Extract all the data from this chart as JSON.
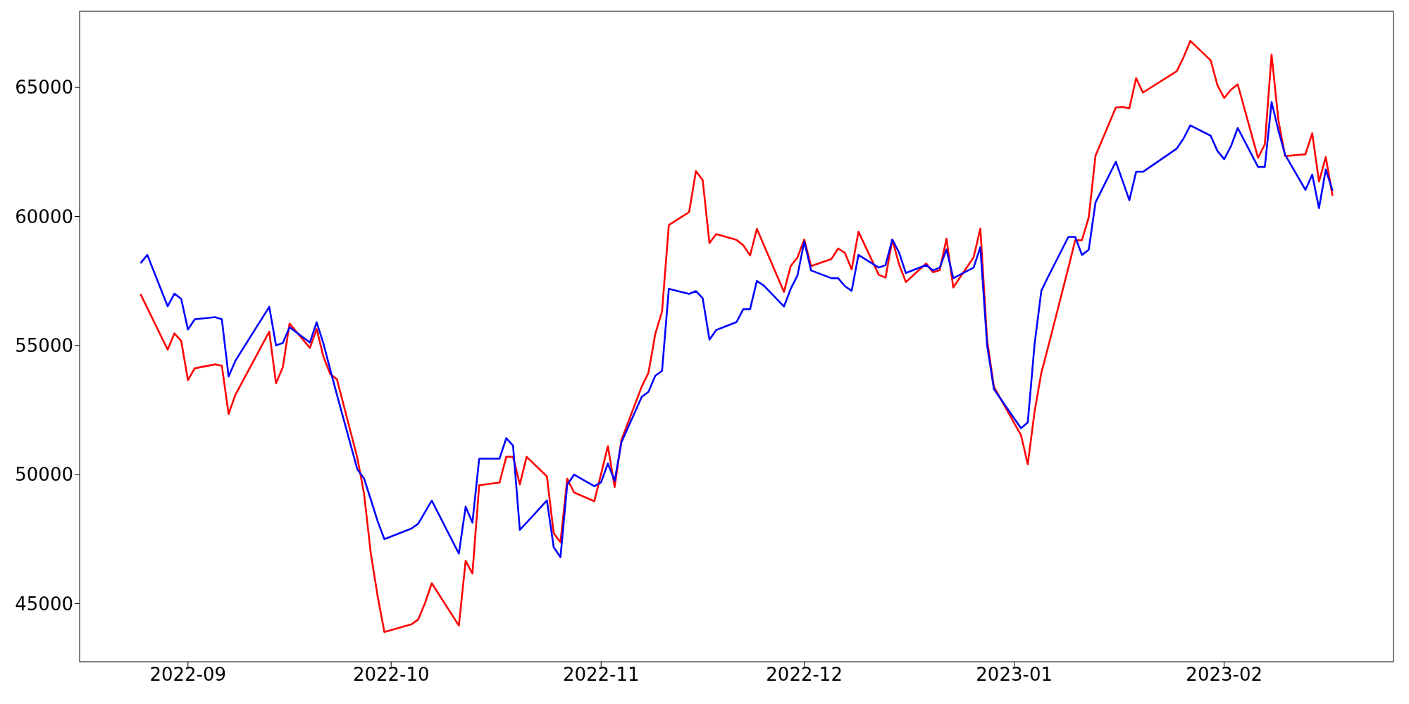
{
  "chart_data": {
    "type": "line",
    "x": [
      "2022-08-25",
      "2022-08-26",
      "2022-08-29",
      "2022-08-30",
      "2022-08-31",
      "2022-09-01",
      "2022-09-02",
      "2022-09-05",
      "2022-09-06",
      "2022-09-07",
      "2022-09-08",
      "2022-09-13",
      "2022-09-14",
      "2022-09-15",
      "2022-09-16",
      "2022-09-19",
      "2022-09-20",
      "2022-09-21",
      "2022-09-22",
      "2022-09-23",
      "2022-09-26",
      "2022-09-27",
      "2022-09-28",
      "2022-09-29",
      "2022-09-30",
      "2022-10-04",
      "2022-10-05",
      "2022-10-06",
      "2022-10-07",
      "2022-10-11",
      "2022-10-12",
      "2022-10-13",
      "2022-10-14",
      "2022-10-17",
      "2022-10-18",
      "2022-10-19",
      "2022-10-20",
      "2022-10-21",
      "2022-10-24",
      "2022-10-25",
      "2022-10-26",
      "2022-10-27",
      "2022-10-28",
      "2022-10-31",
      "2022-11-01",
      "2022-11-02",
      "2022-11-03",
      "2022-11-04",
      "2022-11-07",
      "2022-11-08",
      "2022-11-09",
      "2022-11-10",
      "2022-11-11",
      "2022-11-14",
      "2022-11-15",
      "2022-11-16",
      "2022-11-17",
      "2022-11-18",
      "2022-11-21",
      "2022-11-22",
      "2022-11-23",
      "2022-11-24",
      "2022-11-25",
      "2022-11-28",
      "2022-11-29",
      "2022-11-30",
      "2022-12-01",
      "2022-12-02",
      "2022-12-05",
      "2022-12-06",
      "2022-12-07",
      "2022-12-08",
      "2022-12-09",
      "2022-12-12",
      "2022-12-13",
      "2022-12-14",
      "2022-12-15",
      "2022-12-16",
      "2022-12-19",
      "2022-12-20",
      "2022-12-21",
      "2022-12-22",
      "2022-12-23",
      "2022-12-26",
      "2022-12-27",
      "2022-12-28",
      "2022-12-29",
      "2023-01-02",
      "2023-01-03",
      "2023-01-04",
      "2023-01-05",
      "2023-01-06",
      "2023-01-09",
      "2023-01-10",
      "2023-01-11",
      "2023-01-12",
      "2023-01-13",
      "2023-01-16",
      "2023-01-17",
      "2023-01-18",
      "2023-01-19",
      "2023-01-20",
      "2023-01-25",
      "2023-01-26",
      "2023-01-27",
      "2023-01-30",
      "2023-01-31",
      "2023-02-01",
      "2023-02-02",
      "2023-02-03",
      "2023-02-06",
      "2023-02-07",
      "2023-02-08",
      "2023-02-09",
      "2023-02-10",
      "2023-02-13",
      "2023-02-14",
      "2023-02-15",
      "2023-02-16",
      "2023-02-17"
    ],
    "series": [
      {
        "color": "#ff0000",
        "values": [
          56990,
          56450,
          54840,
          55470,
          55180,
          53660,
          54120,
          54270,
          54220,
          52350,
          53090,
          55540,
          53540,
          54160,
          55850,
          54910,
          55640,
          54570,
          53900,
          53690,
          50660,
          49260,
          46940,
          45300,
          43900,
          44200,
          44390,
          45020,
          45790,
          44150,
          46660,
          46170,
          49590,
          49690,
          50690,
          50690,
          49620,
          50690,
          49930,
          47730,
          47380,
          49840,
          49310,
          48970,
          50030,
          51100,
          49520,
          51340,
          53410,
          53950,
          55450,
          56320,
          59670,
          60170,
          61760,
          61410,
          58970,
          59320,
          59090,
          58880,
          58490,
          59520,
          58910,
          57080,
          58080,
          58420,
          59110,
          58080,
          58350,
          58760,
          58590,
          57950,
          59410,
          57740,
          57630,
          59100,
          58140,
          57460,
          58180,
          57840,
          57920,
          59140,
          57250,
          58420,
          59530,
          55200,
          53400,
          51530,
          50400,
          52430,
          53940,
          54940,
          58020,
          59080,
          59080,
          59960,
          62350,
          64220,
          64240,
          64190,
          65360,
          64800,
          65630,
          66170,
          66800,
          66050,
          65090,
          64590,
          64910,
          65120,
          62270,
          62790,
          66270,
          63740,
          62340,
          62410,
          63220,
          61350,
          62300,
          60800
        ]
      },
      {
        "color": "#0000ff",
        "values": [
          58190,
          58510,
          56520,
          57010,
          56810,
          55620,
          56020,
          56100,
          56020,
          53800,
          54410,
          56500,
          55010,
          55100,
          55710,
          55120,
          55900,
          55080,
          54070,
          53090,
          50210,
          49850,
          49030,
          48200,
          47500,
          47910,
          48100,
          48550,
          48990,
          46940,
          48760,
          48140,
          50620,
          50620,
          51410,
          51120,
          47860,
          48140,
          49000,
          47190,
          46800,
          49610,
          50000,
          49550,
          49700,
          50430,
          49760,
          51250,
          53010,
          53210,
          53830,
          54020,
          57200,
          57000,
          57110,
          56830,
          55230,
          55600,
          55910,
          56410,
          56410,
          57500,
          57330,
          56510,
          57200,
          57720,
          59030,
          57910,
          57610,
          57610,
          57300,
          57120,
          58510,
          58020,
          58120,
          59110,
          58600,
          57810,
          58120,
          57910,
          58020,
          58720,
          57610,
          58020,
          58810,
          55000,
          53310,
          51800,
          52020,
          55040,
          57120,
          57660,
          59210,
          59210,
          58510,
          58710,
          60540,
          62120,
          61380,
          60630,
          61730,
          61730,
          62630,
          63020,
          63530,
          63130,
          62540,
          62220,
          62720,
          63430,
          61920,
          61920,
          64430,
          63340,
          62390,
          61030,
          61620,
          60320,
          61820,
          61000
        ]
      }
    ],
    "xlim": [
      "2022-08-16",
      "2023-02-26"
    ],
    "xticks": [
      "2022-09",
      "2022-10",
      "2022-11",
      "2022-12",
      "2023-01",
      "2023-02"
    ],
    "ylim": [
      42750,
      67950
    ],
    "yticks": [
      45000,
      50000,
      55000,
      60000,
      65000
    ],
    "grid": false,
    "marker": "none",
    "line_style": "solid"
  }
}
